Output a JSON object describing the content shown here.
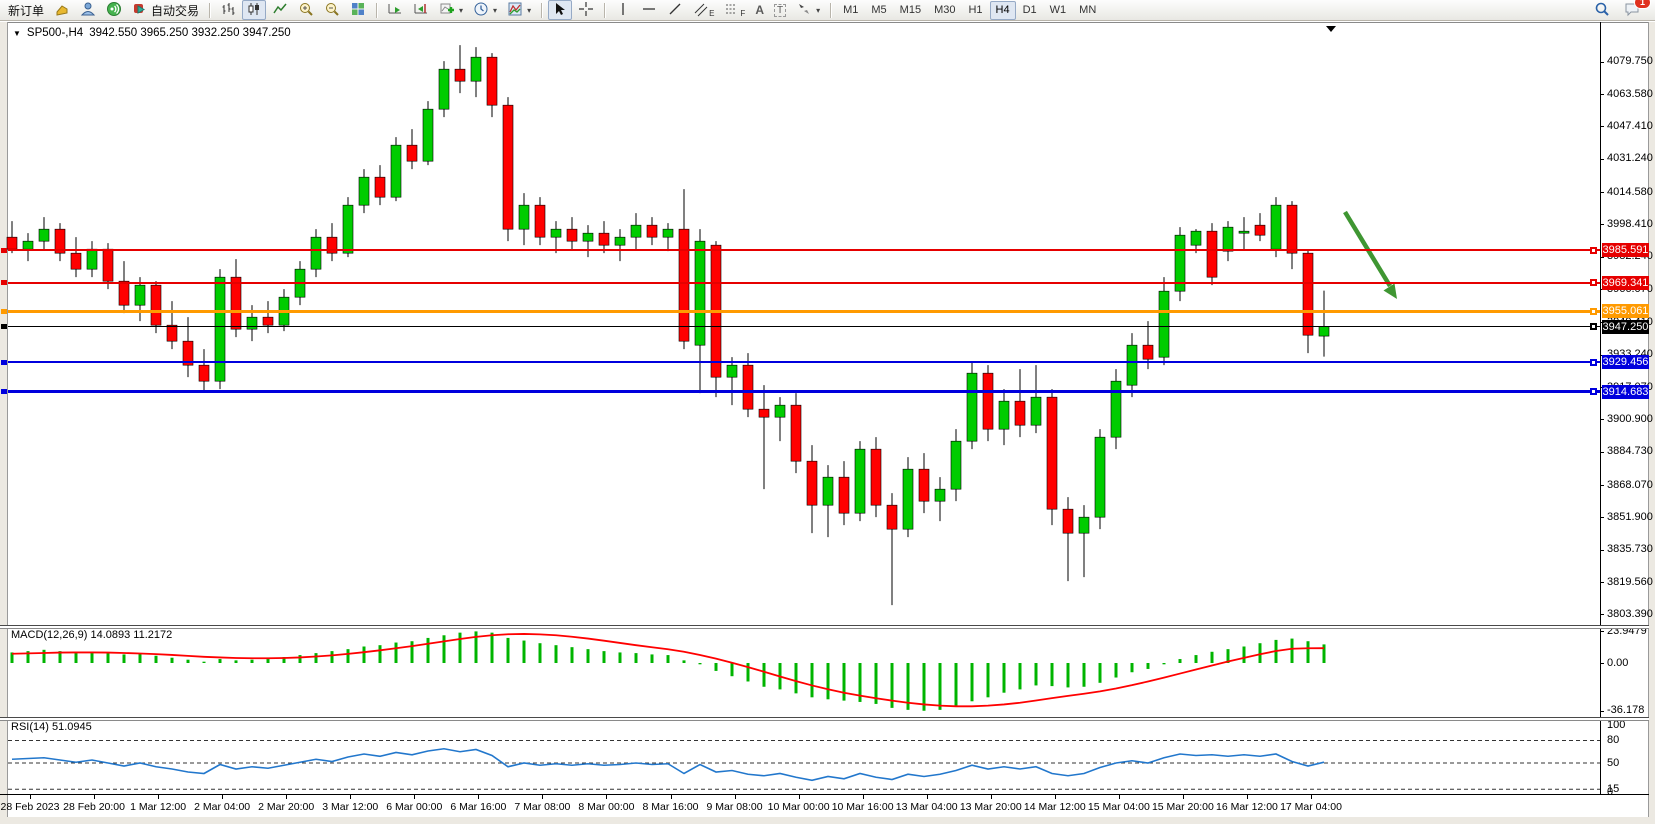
{
  "toolbar": {
    "new_order": "新订单",
    "auto_trading": "自动交易",
    "icon_letters": {
      "channel": "E",
      "fibonacci": "F",
      "text_tool": "A",
      "label_tool": "T"
    },
    "timeframe_labels": [
      "M1",
      "M5",
      "M15",
      "M30",
      "H1",
      "H4",
      "D1",
      "W1",
      "MN"
    ],
    "active_timeframe": "H4",
    "notification_badge": "1"
  },
  "chart": {
    "collapse_icon": "▼",
    "title": "SP500-,H4",
    "ohlc": "3942.550 3965.250 3932.250 3947.250"
  },
  "price_axis": {
    "ticks": [
      "4079.750",
      "4063.580",
      "4047.410",
      "4031.240",
      "4014.580",
      "3998.410",
      "3982.240",
      "3966.070",
      "3949.410",
      "3933.240",
      "3917.070",
      "3900.900",
      "3884.730",
      "3868.070",
      "3851.900",
      "3835.730",
      "3819.560",
      "3803.390"
    ]
  },
  "hlines": [
    {
      "label": "3985.591",
      "value": 3985.591,
      "color": "#e60000",
      "thickness": 2
    },
    {
      "label": "3969.341",
      "value": 3969.341,
      "color": "#e60000",
      "thickness": 2
    },
    {
      "label": "3955.061",
      "value": 3955.061,
      "color": "#ff9a00",
      "thickness": 3
    },
    {
      "label": "3947.250",
      "value": 3947.25,
      "color": "#000000",
      "thickness": 1
    },
    {
      "label": "3929.456",
      "value": 3929.456,
      "color": "#0000dd",
      "thickness": 2
    },
    {
      "label": "3914.683",
      "value": 3914.683,
      "color": "#0000dd",
      "thickness": 3
    }
  ],
  "chart_data": {
    "type": "candlestick",
    "symbol": "SP500-",
    "timeframe": "H4",
    "ylim": [
      3803.39,
      4088
    ],
    "candles": [
      [
        3992,
        4000,
        3984,
        3986
      ],
      [
        3986,
        3994,
        3980,
        3990
      ],
      [
        3990,
        4002,
        3986,
        3996
      ],
      [
        3996,
        3999,
        3980,
        3984
      ],
      [
        3984,
        3992,
        3972,
        3976
      ],
      [
        3976,
        3990,
        3972,
        3986
      ],
      [
        3986,
        3989,
        3966,
        3970
      ],
      [
        3970,
        3980,
        3954,
        3958
      ],
      [
        3958,
        3972,
        3950,
        3968
      ],
      [
        3968,
        3970,
        3944,
        3948
      ],
      [
        3948,
        3960,
        3936,
        3940
      ],
      [
        3940,
        3952,
        3922,
        3928
      ],
      [
        3928,
        3936,
        3915,
        3920
      ],
      [
        3920,
        3976,
        3916,
        3972
      ],
      [
        3972,
        3981,
        3942,
        3946
      ],
      [
        3946,
        3958,
        3940,
        3952
      ],
      [
        3952,
        3960,
        3944,
        3948
      ],
      [
        3948,
        3966,
        3945,
        3962
      ],
      [
        3962,
        3980,
        3958,
        3976
      ],
      [
        3976,
        3996,
        3972,
        3992
      ],
      [
        3992,
        3999,
        3980,
        3984
      ],
      [
        3984,
        4012,
        3982,
        4008
      ],
      [
        4008,
        4026,
        4004,
        4022
      ],
      [
        4022,
        4028,
        4008,
        4012
      ],
      [
        4012,
        4042,
        4010,
        4038
      ],
      [
        4038,
        4046,
        4026,
        4030
      ],
      [
        4030,
        4060,
        4028,
        4056
      ],
      [
        4056,
        4080,
        4052,
        4076
      ],
      [
        4076,
        4088,
        4064,
        4070
      ],
      [
        4070,
        4087,
        4062,
        4082
      ],
      [
        4082,
        4084,
        4052,
        4058
      ],
      [
        4058,
        4062,
        3990,
        3996
      ],
      [
        3996,
        4014,
        3988,
        4008
      ],
      [
        4008,
        4012,
        3988,
        3992
      ],
      [
        3992,
        4000,
        3984,
        3996
      ],
      [
        3996,
        4002,
        3986,
        3990
      ],
      [
        3990,
        3998,
        3982,
        3994
      ],
      [
        3994,
        4000,
        3984,
        3988
      ],
      [
        3988,
        3996,
        3980,
        3992
      ],
      [
        3992,
        4004,
        3986,
        3998
      ],
      [
        3998,
        4002,
        3988,
        3992
      ],
      [
        3992,
        3999,
        3985,
        3996
      ],
      [
        3996,
        4016,
        3936,
        3940
      ],
      [
        3938,
        3996,
        3914,
        3990
      ],
      [
        3988,
        3990,
        3912,
        3922
      ],
      [
        3922,
        3932,
        3908,
        3928
      ],
      [
        3928,
        3934,
        3902,
        3906
      ],
      [
        3906,
        3918,
        3866,
        3902
      ],
      [
        3902,
        3912,
        3890,
        3908
      ],
      [
        3908,
        3914,
        3874,
        3880
      ],
      [
        3880,
        3888,
        3844,
        3858
      ],
      [
        3858,
        3878,
        3842,
        3872
      ],
      [
        3872,
        3880,
        3848,
        3854
      ],
      [
        3854,
        3890,
        3850,
        3886
      ],
      [
        3886,
        3892,
        3852,
        3858
      ],
      [
        3858,
        3864,
        3808,
        3846
      ],
      [
        3846,
        3882,
        3842,
        3876
      ],
      [
        3876,
        3884,
        3854,
        3860
      ],
      [
        3860,
        3872,
        3850,
        3866
      ],
      [
        3866,
        3896,
        3860,
        3890
      ],
      [
        3890,
        3930,
        3886,
        3924
      ],
      [
        3924,
        3928,
        3890,
        3896
      ],
      [
        3896,
        3916,
        3888,
        3910
      ],
      [
        3910,
        3926,
        3892,
        3898
      ],
      [
        3898,
        3928,
        3894,
        3912
      ],
      [
        3912,
        3916,
        3848,
        3856
      ],
      [
        3856,
        3862,
        3820,
        3844
      ],
      [
        3844,
        3858,
        3822,
        3852
      ],
      [
        3852,
        3896,
        3846,
        3892
      ],
      [
        3892,
        3926,
        3886,
        3920
      ],
      [
        3918,
        3944,
        3912,
        3938
      ],
      [
        3938,
        3950,
        3926,
        3931
      ],
      [
        3932,
        3972,
        3928,
        3965
      ],
      [
        3965,
        3997,
        3960,
        3993
      ],
      [
        3988,
        3996,
        3984,
        3995
      ],
      [
        3995,
        3999,
        3968,
        3972
      ],
      [
        3985,
        4000,
        3980,
        3997
      ],
      [
        3994,
        4002,
        3986,
        3995
      ],
      [
        3998,
        4004,
        3990,
        3993
      ],
      [
        3986,
        4012,
        3982,
        4008
      ],
      [
        4008,
        4010,
        3976,
        3984
      ],
      [
        3984,
        3986,
        3934,
        3943
      ],
      [
        3942.55,
        3965.25,
        3932.25,
        3947.25
      ]
    ],
    "macd": {
      "label": "MACD(12,26,9) 14.0893 11.2172",
      "axis_ticks": [
        "23.9479",
        "0.00",
        "-36.178"
      ],
      "histogram": [
        8,
        9,
        10,
        9,
        8,
        8.5,
        8,
        6.5,
        7,
        5.5,
        4,
        2.5,
        1,
        3,
        2,
        2.5,
        3,
        4.5,
        6,
        7.5,
        9,
        10.5,
        12.5,
        13.5,
        15.5,
        16.5,
        19,
        21,
        23,
        23.9479,
        23,
        19,
        17,
        15,
        13.5,
        12,
        10.5,
        9,
        8,
        7.5,
        6.5,
        6,
        2,
        -1,
        -6,
        -10,
        -14,
        -18,
        -20,
        -23,
        -26,
        -27.5,
        -28.5,
        -29.5,
        -31,
        -34,
        -35.5,
        -36.178,
        -35.5,
        -33,
        -29,
        -26,
        -22.5,
        -20,
        -17,
        -17.5,
        -18.5,
        -18,
        -15,
        -11,
        -7,
        -4.5,
        -1,
        3,
        6,
        8.5,
        10.5,
        12.5,
        15,
        17.5,
        18.5,
        16.5,
        14.0893
      ],
      "signal": [
        7,
        7.3,
        7.6,
        7.9,
        8,
        8,
        7.9,
        7.6,
        7.2,
        6.7,
        6.1,
        5.4,
        4.7,
        4.2,
        3.8,
        3.6,
        3.6,
        3.8,
        4.2,
        4.9,
        5.8,
        6.9,
        8.2,
        9.6,
        11.2,
        12.8,
        14.6,
        16.4,
        18.2,
        19.8,
        21,
        21.8,
        22,
        21.7,
        21,
        19.9,
        18.5,
        16.9,
        15.2,
        13.5,
        11.9,
        10.4,
        8.5,
        6.1,
        3.3,
        0.2,
        -3.1,
        -6.6,
        -10.2,
        -13.7,
        -17,
        -19.9,
        -22.5,
        -24.7,
        -26.7,
        -28.5,
        -30.1,
        -31.4,
        -32.3,
        -32.8,
        -32.8,
        -32.3,
        -31.4,
        -30.1,
        -28.4,
        -26.6,
        -24.9,
        -23.3,
        -21.5,
        -19.3,
        -16.8,
        -14,
        -11.1,
        -8,
        -4.9,
        -1.9,
        1.1,
        3.9,
        6.6,
        9.1,
        10.8,
        11.2,
        11.2172
      ]
    },
    "rsi": {
      "label": "RSI(14) 51.0945",
      "axis_ticks": [
        "100",
        "80",
        "50",
        "15",
        "0"
      ],
      "level_lines": [
        80,
        50,
        15
      ],
      "values": [
        55,
        56,
        57,
        54,
        51,
        54,
        50,
        46,
        50,
        45,
        42,
        38,
        36,
        48,
        42,
        45,
        43,
        47,
        51,
        55,
        52,
        58,
        62,
        59,
        64,
        61,
        66,
        69,
        65,
        68,
        60,
        45,
        50,
        47,
        49,
        47,
        49,
        47,
        48,
        50,
        48,
        49,
        36,
        48,
        38,
        40,
        35,
        33,
        36,
        31,
        27,
        32,
        29,
        36,
        31,
        28,
        35,
        32,
        35,
        40,
        47,
        42,
        45,
        42,
        45,
        36,
        33,
        36,
        44,
        50,
        53,
        50,
        57,
        62,
        60,
        61,
        59,
        61,
        59,
        62,
        52,
        46,
        51.0945
      ]
    },
    "time_labels": [
      "28 Feb 2023",
      "28 Feb 20:00",
      "1 Mar 12:00",
      "2 Mar 04:00",
      "2 Mar 20:00",
      "3 Mar 12:00",
      "6 Mar 00:00",
      "6 Mar 16:00",
      "7 Mar 08:00",
      "8 Mar 00:00",
      "8 Mar 16:00",
      "9 Mar 08:00",
      "10 Mar 00:00",
      "10 Mar 16:00",
      "13 Mar 04:00",
      "13 Mar 20:00",
      "14 Mar 12:00",
      "15 Mar 04:00",
      "15 Mar 20:00",
      "16 Mar 12:00",
      "17 Mar 04:00"
    ]
  },
  "colors": {
    "bull": "#00cc00",
    "bear": "#ff0000",
    "wick": "#000000",
    "macd_histogram": "#00b400",
    "macd_signal": "#ff0000",
    "rsi_line": "#2277cc",
    "arrow_annotation": "#3f9632"
  }
}
